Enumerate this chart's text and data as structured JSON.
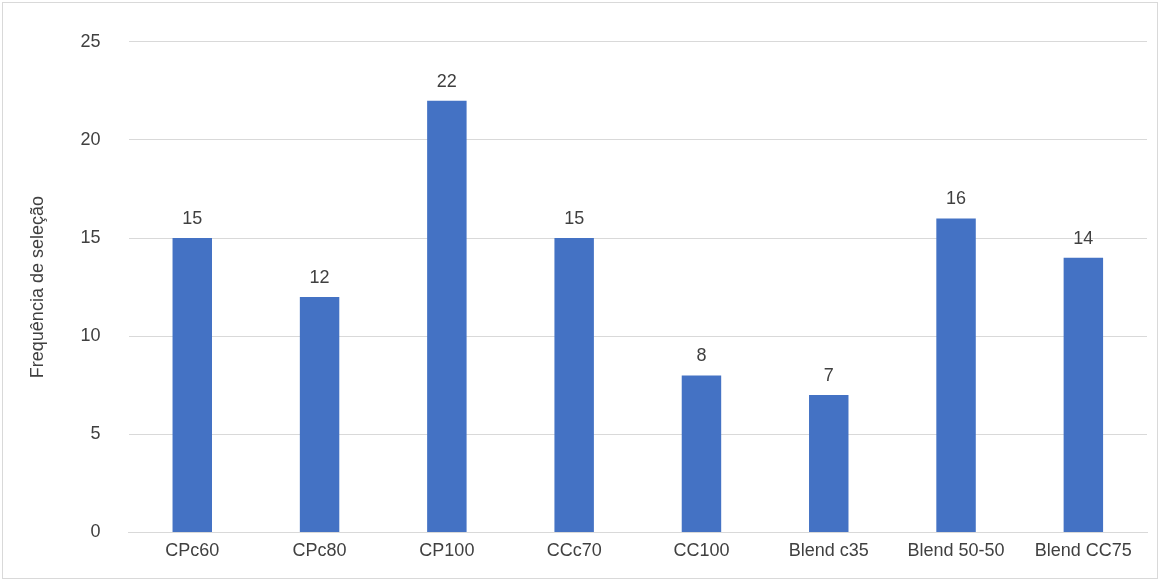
{
  "chart_data": {
    "type": "bar",
    "ylabel": "Frequência de seleção",
    "categories": [
      "CPc60",
      "CPc80",
      "CP100",
      "CCc70",
      "CC100",
      "Blend c35",
      "Blend 50-50",
      "Blend CC75"
    ],
    "values": [
      15,
      12,
      22,
      15,
      8,
      7,
      16,
      14
    ],
    "color": "#4472c4",
    "ylim": [
      0,
      25
    ],
    "yticks": [
      0,
      5,
      10,
      15,
      20,
      25
    ],
    "grid": "y",
    "data_labels": true,
    "legend": false
  }
}
